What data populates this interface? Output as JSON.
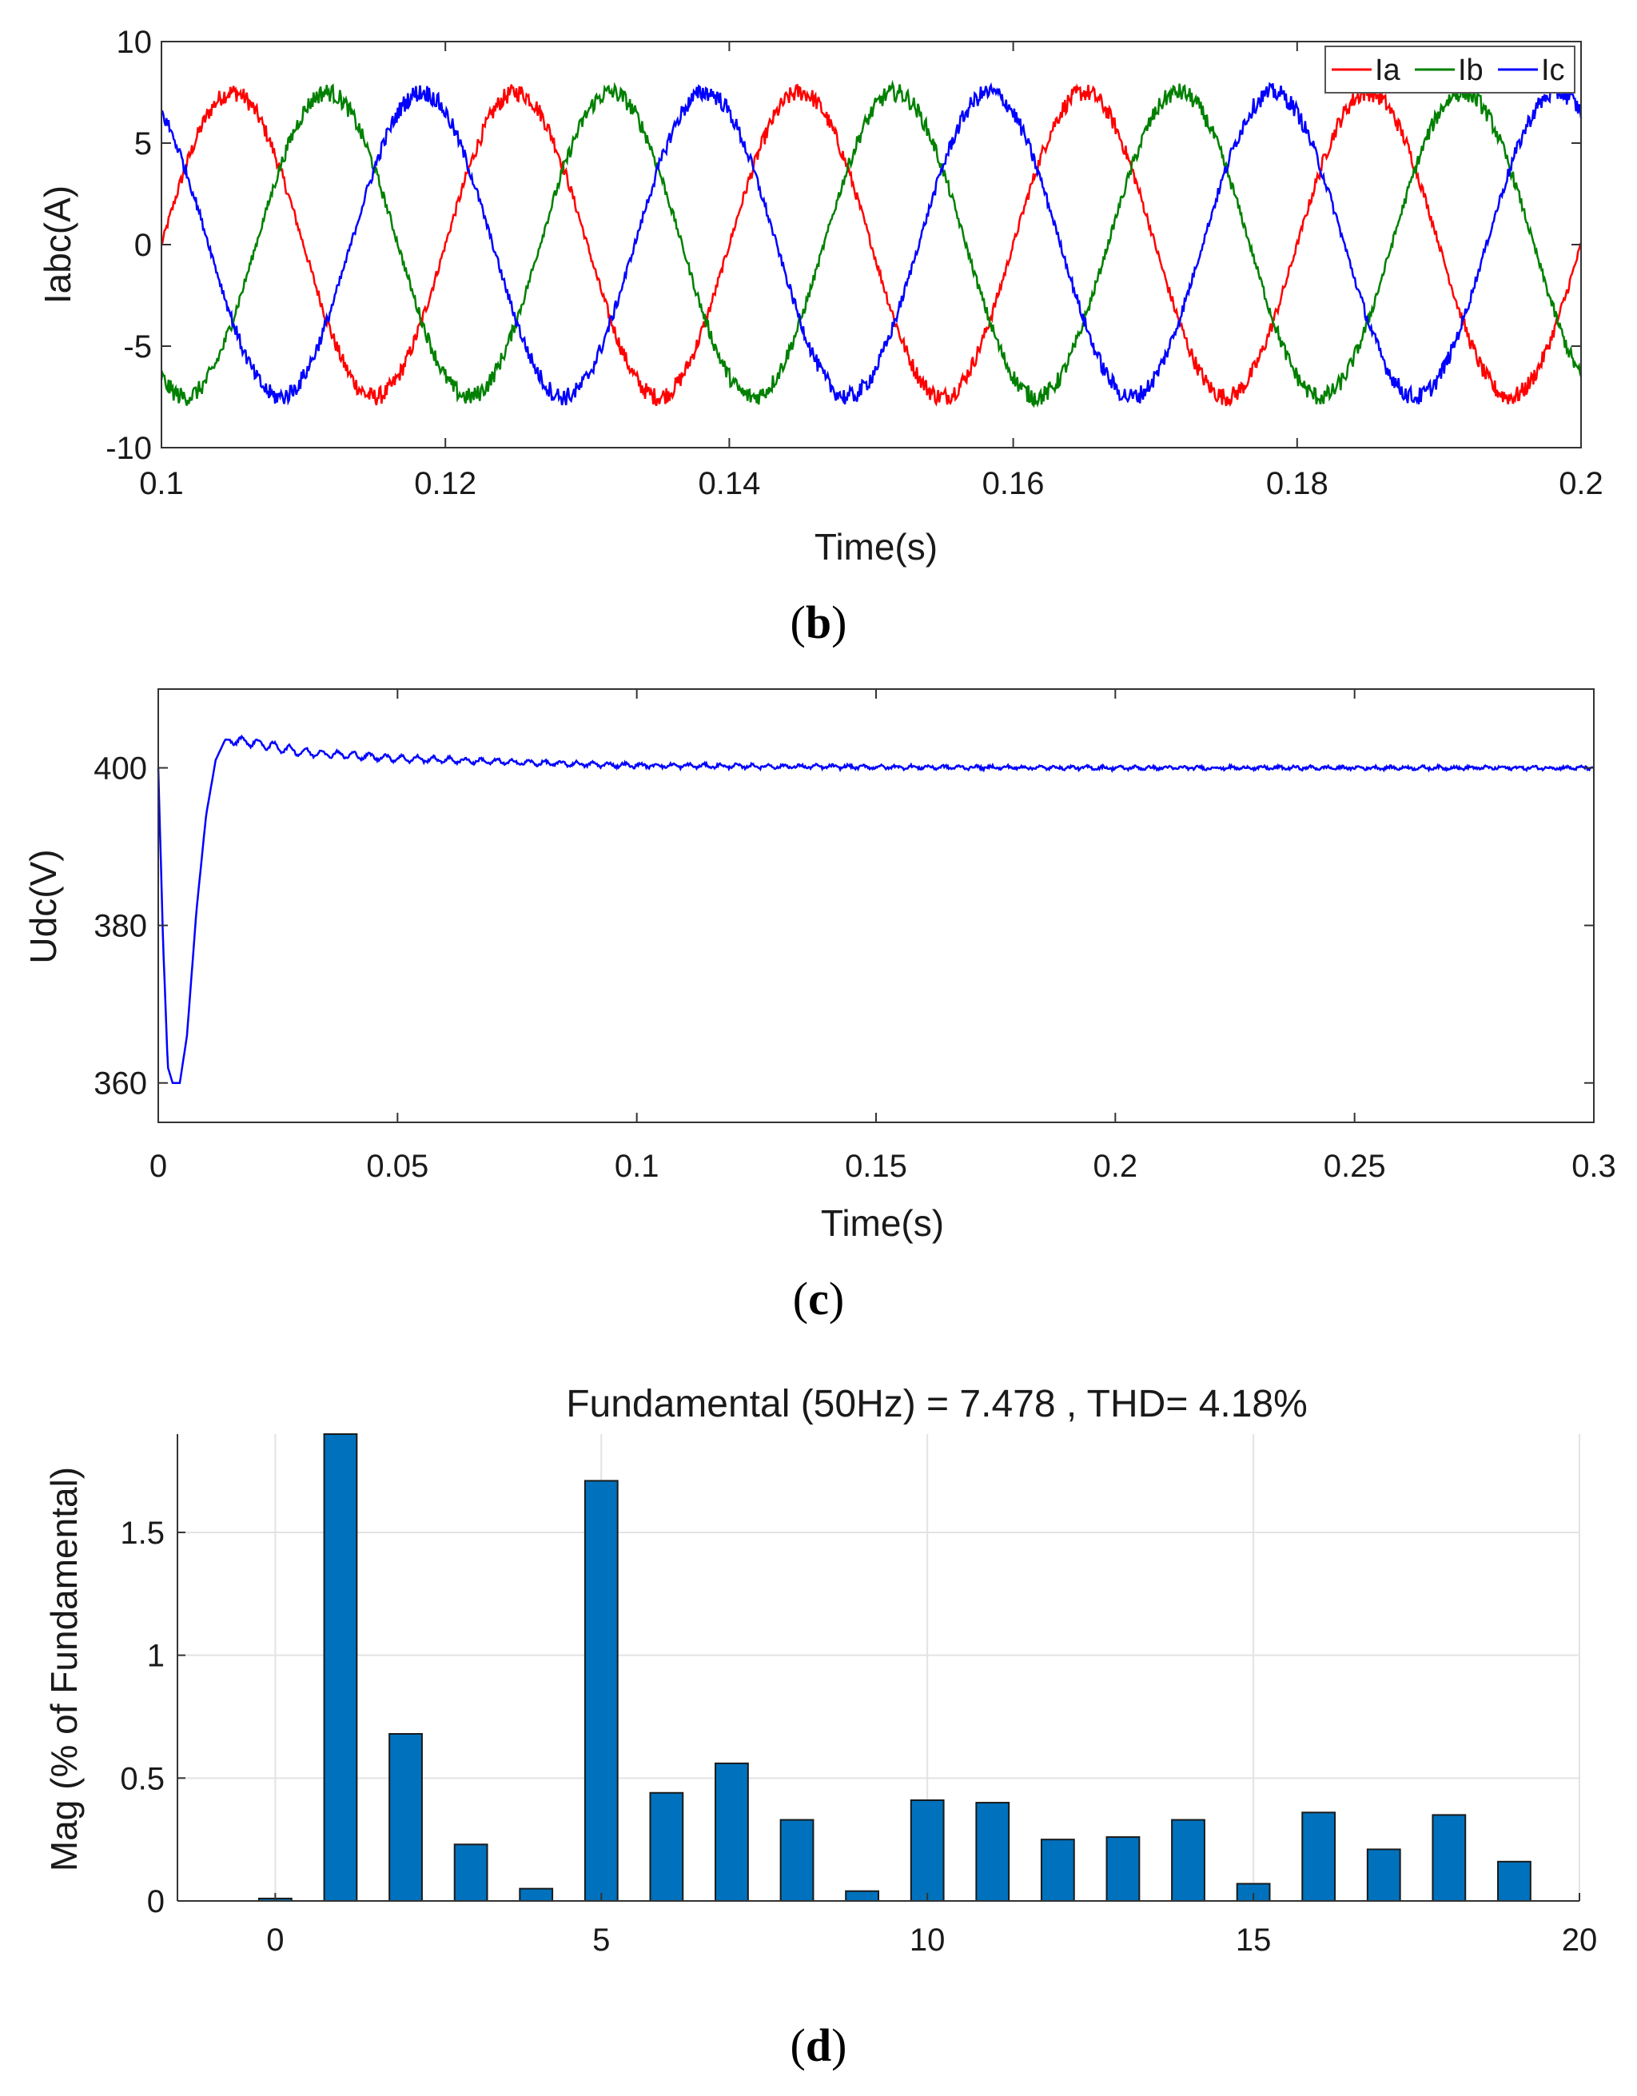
{
  "chart_data": [
    {
      "type": "line",
      "panel_label": "b",
      "title": "",
      "xlabel": "Time(s)",
      "ylabel": "Iabc(A)",
      "xlim": [
        0.1,
        0.2
      ],
      "ylim": [
        -10,
        10
      ],
      "xticks": [
        0.1,
        0.12,
        0.14,
        0.16,
        0.18,
        0.2
      ],
      "xtick_labels": [
        "0.1",
        "0.12",
        "0.14",
        "0.16",
        "0.18",
        "0.2"
      ],
      "yticks": [
        -10,
        -5,
        0,
        5,
        10
      ],
      "ytick_labels": [
        "-10",
        "-5",
        "0",
        "5",
        "10"
      ],
      "grid": false,
      "legend_position": "top-right",
      "signal": {
        "amplitude": 7.5,
        "frequency_hz": 50,
        "phase_shift_deg": 120
      },
      "series": [
        {
          "name": "Ia",
          "color": "#ff0000",
          "phase_deg": 0
        },
        {
          "name": "Ib",
          "color": "#008000",
          "phase_deg": -120
        },
        {
          "name": "Ic",
          "color": "#0000ff",
          "phase_deg": 120
        }
      ]
    },
    {
      "type": "line",
      "panel_label": "c",
      "title": "",
      "xlabel": "Time(s)",
      "ylabel": "Udc(V)",
      "xlim": [
        0,
        0.3
      ],
      "ylim": [
        355,
        410
      ],
      "xticks": [
        0,
        0.05,
        0.1,
        0.15,
        0.2,
        0.25,
        0.3
      ],
      "xtick_labels": [
        "0",
        "0.05",
        "0.1",
        "0.15",
        "0.2",
        "0.25",
        "0.3"
      ],
      "yticks": [
        360,
        380,
        400
      ],
      "ytick_labels": [
        "360",
        "380",
        "400"
      ],
      "grid": false,
      "series": [
        {
          "name": "Udc",
          "color": "#0000ff",
          "x": [
            0,
            0.001,
            0.002,
            0.003,
            0.0045,
            0.006,
            0.008,
            0.01,
            0.012,
            0.014,
            0.016,
            0.02,
            0.03,
            0.05,
            0.08,
            0.1,
            0.15,
            0.2,
            0.25,
            0.3
          ],
          "y": [
            400,
            378,
            362,
            360,
            360,
            366,
            382,
            394,
            401,
            403.6,
            403.5,
            403.2,
            402,
            401.2,
            400.6,
            400.3,
            400.1,
            400.0,
            400.0,
            400.0
          ]
        }
      ]
    },
    {
      "type": "bar",
      "panel_label": "d",
      "title": "Fundamental (50Hz) = 7.478 , THD= 4.18%",
      "xlabel": "",
      "ylabel": "Mag (% of Fundamental)",
      "xlim": [
        -1.5,
        20
      ],
      "ylim": [
        0,
        1.9
      ],
      "xticks": [
        0,
        5,
        10,
        15,
        20
      ],
      "xtick_labels": [
        "0",
        "5",
        "10",
        "15",
        "20"
      ],
      "yticks": [
        0,
        0.5,
        1,
        1.5
      ],
      "ytick_labels": [
        "0",
        "0.5",
        "1",
        "1.5"
      ],
      "grid": true,
      "bar_color": "#0072bd",
      "categories": [
        0,
        1,
        2,
        3,
        4,
        5,
        6,
        7,
        8,
        9,
        10,
        11,
        12,
        13,
        14,
        15,
        16,
        17,
        18,
        19
      ],
      "values": [
        0.01,
        1.9,
        0.68,
        0.23,
        0.05,
        1.71,
        0.44,
        0.56,
        0.33,
        0.04,
        0.41,
        0.4,
        0.25,
        0.26,
        0.33,
        0.07,
        0.36,
        0.21,
        0.35,
        0.16
      ]
    }
  ]
}
